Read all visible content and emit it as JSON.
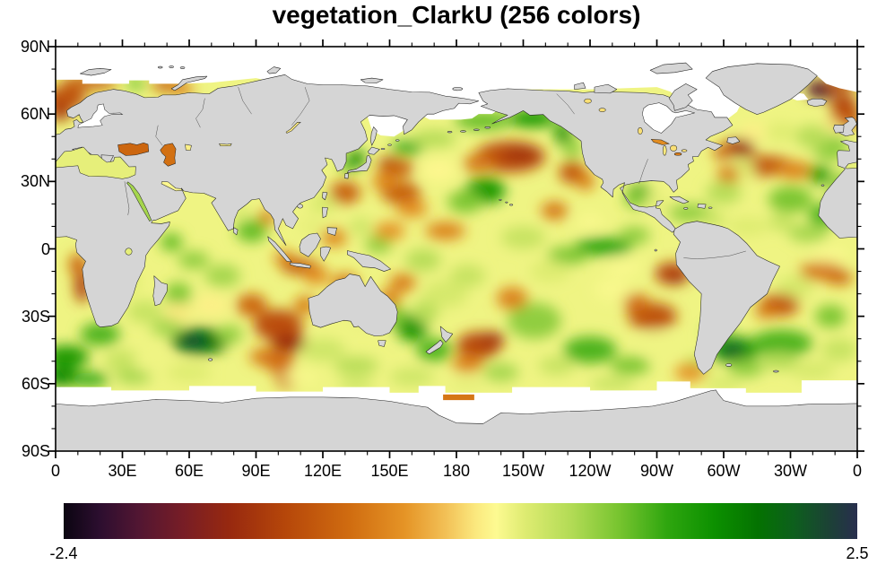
{
  "title": "vegetation_ClarkU (256 colors)",
  "axes": {
    "x_tick_labels": [
      "0",
      "30E",
      "60E",
      "90E",
      "120E",
      "150E",
      "180",
      "150W",
      "120W",
      "90W",
      "60W",
      "30W",
      "0"
    ],
    "y_tick_labels": [
      "90N",
      "60N",
      "30N",
      "0",
      "30S",
      "60S",
      "90S"
    ],
    "x_major_step_deg": 30,
    "y_major_step_deg": 30,
    "minor_step_deg": 10
  },
  "colorbar": {
    "min_label": "-2.4",
    "max_label": "2.5",
    "colormap_name": "vegetation_ClarkU",
    "n_colors": 256,
    "stops": [
      [
        0,
        "#0b0511"
      ],
      [
        0.045,
        "#2c0e2f"
      ],
      [
        0.095,
        "#521632"
      ],
      [
        0.15,
        "#771d26"
      ],
      [
        0.21,
        "#98290f"
      ],
      [
        0.28,
        "#b6470a"
      ],
      [
        0.36,
        "#d06c10"
      ],
      [
        0.43,
        "#e59426"
      ],
      [
        0.48,
        "#f2bf55"
      ],
      [
        0.52,
        "#fbe97f"
      ],
      [
        0.545,
        "#fdfa91"
      ],
      [
        0.58,
        "#dfec72"
      ],
      [
        0.64,
        "#b2db55"
      ],
      [
        0.7,
        "#77c42f"
      ],
      [
        0.76,
        "#2fa60f"
      ],
      [
        0.82,
        "#0c9000"
      ],
      [
        0.875,
        "#047201"
      ],
      [
        0.92,
        "#0d5f1d"
      ],
      [
        0.965,
        "#1c4136"
      ],
      [
        1,
        "#282e4e"
      ]
    ]
  },
  "colors": {
    "background": "#ffffff",
    "land": "#d5d5d5",
    "ice": "#ffffff",
    "coast": "#222222",
    "frame": "#000000",
    "text": "#000000"
  },
  "chart_data": {
    "type": "heatmap",
    "title": "vegetation_ClarkU (256 colors)",
    "projection": "equirectangular, longitude 0E-360E (map centered on 180), latitude 90S-90N",
    "lon_range": [
      0,
      360
    ],
    "lat_range": [
      -90,
      90
    ],
    "value_range": [
      -2.4,
      2.5
    ],
    "legend_position": "bottom",
    "grid": false,
    "base_value": 0.35,
    "field_blobs_format": [
      "lon_east_deg",
      "lat_deg",
      "rx_deg",
      "ry_deg",
      "value"
    ],
    "field_blobs": [
      [
        4,
        67,
        10,
        5,
        -0.9
      ],
      [
        2,
        61,
        5,
        4,
        -1.15
      ],
      [
        15,
        74,
        13,
        3,
        -0.8
      ],
      [
        36,
        73.5,
        4,
        2.5,
        1.1
      ],
      [
        50,
        73,
        7,
        3,
        -0.75
      ],
      [
        57,
        71,
        5,
        3,
        -0.45
      ],
      [
        344,
        71,
        7,
        4,
        -1.85
      ],
      [
        345,
        70.5,
        3,
        1.8,
        -2.3
      ],
      [
        352,
        73,
        7,
        3,
        -1.0
      ],
      [
        354,
        64,
        6,
        5,
        -1.05
      ],
      [
        357,
        58,
        5,
        4,
        -0.9
      ],
      [
        351,
        57,
        4,
        3,
        -0.65
      ],
      [
        348,
        54,
        4,
        3,
        0.2
      ],
      [
        307,
        45,
        7,
        4,
        -1.35
      ],
      [
        300,
        43,
        5,
        3,
        -0.75
      ],
      [
        318,
        37,
        14,
        4.5,
        -0.85
      ],
      [
        332,
        35,
        8,
        4,
        -0.45
      ],
      [
        308,
        36,
        6,
        4,
        0.45
      ],
      [
        302,
        33,
        5,
        4,
        -0.5
      ],
      [
        348,
        45,
        8,
        6,
        0.9
      ],
      [
        340,
        50,
        8,
        5,
        0.7
      ],
      [
        326,
        52,
        7,
        4,
        0.45
      ],
      [
        313,
        52,
        6,
        4,
        0.2
      ],
      [
        343,
        33,
        5,
        4,
        1.5
      ],
      [
        352,
        20,
        4,
        6,
        1.5
      ],
      [
        330,
        22,
        10,
        6,
        1.0
      ],
      [
        345,
        15,
        7,
        5,
        1.2
      ],
      [
        352,
        28,
        5,
        6,
        0.9
      ],
      [
        338,
        7,
        9,
        4,
        0.8
      ],
      [
        326,
        12,
        6,
        4,
        0.6
      ],
      [
        262,
        25,
        5,
        3.5,
        1.6
      ],
      [
        263,
        22,
        8,
        4,
        1.0
      ],
      [
        285,
        16,
        10,
        4,
        0.9
      ],
      [
        295,
        13,
        6,
        3,
        0.6
      ],
      [
        300,
        25,
        8,
        5,
        0.7
      ],
      [
        310,
        10,
        8,
        4,
        0.45
      ],
      [
        348,
        -3,
        8,
        4,
        0.3
      ],
      [
        344,
        -10,
        10,
        4,
        -0.55
      ],
      [
        352,
        -13,
        6,
        3,
        -0.7
      ],
      [
        332,
        -17,
        8,
        5,
        0.5
      ],
      [
        325,
        -25,
        9,
        5,
        -0.85
      ],
      [
        319,
        -28,
        5,
        3,
        -0.55
      ],
      [
        305,
        -45,
        11,
        6,
        1.55
      ],
      [
        304,
        -45,
        5,
        2.5,
        2.3
      ],
      [
        326,
        -42,
        14,
        6,
        1.2
      ],
      [
        348,
        -30,
        7,
        5,
        1.0
      ],
      [
        352,
        -45,
        8,
        5,
        0.6
      ],
      [
        297,
        -37,
        5,
        4,
        1.2
      ],
      [
        288,
        -52,
        6,
        4,
        0.7
      ],
      [
        310,
        -53,
        8,
        4,
        0.9
      ],
      [
        340,
        -54,
        10,
        4,
        0.5
      ],
      [
        325,
        -50,
        8,
        4,
        0.7
      ],
      [
        12,
        -16,
        3.5,
        8,
        -1.1
      ],
      [
        10,
        -7,
        4,
        5,
        -0.7
      ],
      [
        20,
        -38,
        9,
        5,
        1.2
      ],
      [
        5,
        -48,
        10,
        5,
        1.5
      ],
      [
        3,
        -57,
        9,
        4,
        1.7
      ],
      [
        15,
        -58,
        9,
        3,
        1.35
      ],
      [
        30,
        -50,
        8,
        5,
        0.6
      ],
      [
        30,
        -15,
        8,
        5,
        0.45
      ],
      [
        40,
        -28,
        8,
        5,
        0.6
      ],
      [
        65,
        -41,
        13,
        6,
        1.85
      ],
      [
        62,
        -41,
        6,
        2.5,
        2.35
      ],
      [
        50,
        -35,
        7,
        4,
        0.8
      ],
      [
        78,
        -38,
        6,
        4,
        0.9
      ],
      [
        100,
        -34,
        11,
        7,
        -0.95
      ],
      [
        105,
        -42,
        8,
        4,
        -1.35
      ],
      [
        88,
        -25,
        7,
        5,
        -0.7
      ],
      [
        95,
        -48,
        8,
        4,
        -0.5
      ],
      [
        112,
        -25,
        5,
        4,
        -0.5
      ],
      [
        100,
        -50,
        7,
        5,
        -0.6
      ],
      [
        104,
        -58,
        5,
        4,
        -0.7
      ],
      [
        43,
        -50,
        8,
        4,
        0.35
      ],
      [
        55,
        -20,
        6,
        5,
        1.0
      ],
      [
        75,
        -12,
        8,
        5,
        0.8
      ],
      [
        62,
        -5,
        7,
        4,
        0.9
      ],
      [
        52,
        3,
        5,
        4,
        1.1
      ],
      [
        70,
        -25,
        8,
        5,
        0.2
      ],
      [
        55,
        -28,
        6,
        4,
        0.15
      ],
      [
        60,
        -55,
        10,
        4,
        0.45
      ],
      [
        35,
        -57,
        8,
        3,
        0.8
      ],
      [
        110,
        -57,
        8,
        3,
        0.3
      ],
      [
        120,
        -45,
        10,
        5,
        0.55
      ],
      [
        88,
        8,
        7,
        5,
        1.1
      ],
      [
        83,
        16,
        4,
        3,
        0.5
      ],
      [
        95,
        14,
        4,
        3,
        -0.55
      ],
      [
        110,
        -8,
        9,
        3.5,
        -0.8
      ],
      [
        103,
        -4,
        5,
        3,
        -0.5
      ],
      [
        117,
        -12,
        6,
        4,
        -0.35
      ],
      [
        130,
        -15,
        6,
        4,
        -0.55
      ],
      [
        125,
        5,
        6,
        4,
        -0.4
      ],
      [
        130,
        25,
        7,
        5,
        -0.75
      ],
      [
        120,
        20,
        6,
        4,
        0.5
      ],
      [
        115,
        10,
        6,
        4,
        0.4
      ],
      [
        137,
        10,
        5,
        4,
        0.55
      ],
      [
        145,
        2,
        6,
        4,
        0.9
      ],
      [
        135,
        40,
        4,
        4,
        1.7
      ],
      [
        131,
        37,
        3,
        3,
        1.2
      ],
      [
        150,
        38,
        5,
        3,
        -1.5
      ],
      [
        153,
        36,
        8,
        4,
        -0.8
      ],
      [
        155,
        25,
        9,
        5,
        -0.8
      ],
      [
        148,
        30,
        6,
        4,
        -0.4
      ],
      [
        158,
        45,
        7,
        3,
        1.3
      ],
      [
        170,
        49,
        10,
        4,
        0.7
      ],
      [
        192,
        57,
        13,
        4,
        1.1
      ],
      [
        214,
        58,
        11,
        4,
        1.5
      ],
      [
        228,
        51,
        4,
        5,
        1.6
      ],
      [
        232,
        45,
        4,
        5,
        0.9
      ],
      [
        204,
        41,
        16,
        7,
        -0.95
      ],
      [
        209,
        42,
        8,
        3.5,
        -1.25
      ],
      [
        190,
        38,
        7,
        4,
        -0.55
      ],
      [
        232,
        34,
        6,
        5,
        -0.85
      ],
      [
        238,
        30,
        4,
        4,
        -0.5
      ],
      [
        193,
        26,
        9,
        6,
        1.5
      ],
      [
        184,
        21,
        8,
        5,
        1.0
      ],
      [
        172,
        35,
        8,
        5,
        0.25
      ],
      [
        160,
        18,
        7,
        4,
        -0.35
      ],
      [
        175,
        8,
        9,
        4,
        -0.45
      ],
      [
        150,
        8,
        7,
        4,
        -0.3
      ],
      [
        224,
        17,
        6,
        4,
        -0.55
      ],
      [
        210,
        5,
        10,
        5,
        0.6
      ],
      [
        240,
        12,
        6,
        4,
        0.3
      ],
      [
        246,
        1,
        13,
        4,
        1.35
      ],
      [
        230,
        -3,
        9,
        4,
        1.0
      ],
      [
        260,
        6,
        7,
        4,
        0.9
      ],
      [
        165,
        -5,
        8,
        5,
        0.7
      ],
      [
        185,
        -12,
        8,
        5,
        0.6
      ],
      [
        277,
        -11,
        8,
        5,
        -1.0
      ],
      [
        279,
        -13,
        4,
        2.5,
        -1.3
      ],
      [
        268,
        -30,
        11,
        6,
        -0.9
      ],
      [
        261,
        -24,
        6,
        4,
        -0.6
      ],
      [
        215,
        -32,
        12,
        8,
        0.9
      ],
      [
        240,
        -45,
        12,
        6,
        1.2
      ],
      [
        258,
        -52,
        9,
        4,
        1.0
      ],
      [
        225,
        -52,
        8,
        4,
        0.6
      ],
      [
        200,
        -55,
        8,
        4,
        0.8
      ],
      [
        190,
        -43,
        10,
        6,
        -1.0
      ],
      [
        196,
        -40,
        6,
        3,
        -1.25
      ],
      [
        185,
        -51,
        7,
        4,
        -0.45
      ],
      [
        205,
        -22,
        7,
        5,
        -0.45
      ],
      [
        250,
        -18,
        8,
        5,
        0.3
      ],
      [
        270,
        -42,
        7,
        5,
        0.35
      ],
      [
        285,
        -55,
        7,
        4,
        -0.3
      ],
      [
        300,
        -60,
        8,
        3,
        0.5
      ],
      [
        160,
        -35,
        7,
        6,
        1.55
      ],
      [
        152,
        -30,
        5,
        5,
        1.0
      ],
      [
        170,
        -45,
        8,
        5,
        1.2
      ],
      [
        166,
        -28,
        6,
        5,
        0.7
      ],
      [
        150,
        -22,
        5,
        4,
        -0.45
      ],
      [
        156,
        -15,
        6,
        4,
        -0.5
      ],
      [
        175,
        -20,
        10,
        6,
        0.5
      ],
      [
        222,
        -10,
        9,
        5,
        0.45
      ],
      [
        255,
        -8,
        8,
        4,
        0.3
      ],
      [
        140,
        -30,
        8,
        5,
        0.4
      ],
      [
        135,
        -52,
        10,
        4,
        0.7
      ],
      [
        160,
        -57,
        10,
        4,
        0.55
      ],
      [
        250,
        -60,
        10,
        3,
        0.6
      ],
      [
        185,
        -60,
        8,
        3,
        0.4
      ],
      [
        135,
        -60,
        8,
        3,
        0.55
      ],
      [
        270,
        20,
        6,
        4,
        0.4
      ],
      [
        312,
        10,
        8,
        4,
        0.45
      ]
    ],
    "ice_regions_note": "white = sea ice / missing data: Arctic Ocean, Baltic Sea, Hudson Bay, Sea of Okhotsk, northern Bering Sea, Labrador/Baffin seas, Southern Ocean band ~60S-68S",
    "inner_seas": {
      "mediterranean": 0.4,
      "mediterranean_west": 0.4,
      "black_sea": -0.7,
      "caspian": -0.6,
      "aral": 0.2,
      "red_sea": 0.8,
      "persian_gulf": 0.25,
      "lake_superior": -0.35,
      "lake_michigan": 0.15,
      "lake_huron": 0.1,
      "lake_erie": -0.5,
      "lake_ontario": 0.1,
      "great_slave": 0.1,
      "great_bear": 0.1,
      "lake_winnipeg": 0.1,
      "lake_baikal": 0.15,
      "lake_balkhash": 0.2,
      "lake_victoria": 0.4,
      "ross_sea_cell": -0.55
    }
  }
}
